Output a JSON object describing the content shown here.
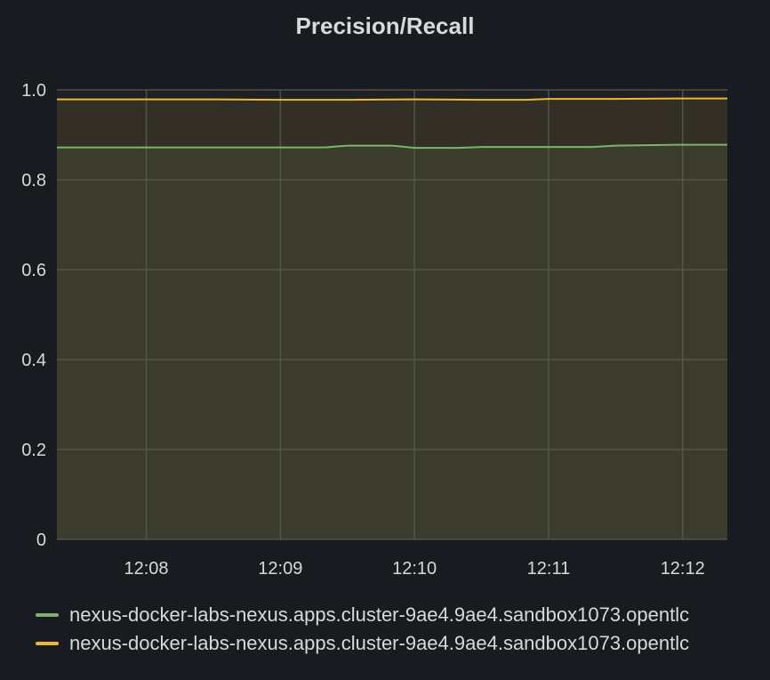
{
  "title": "Precision/Recall",
  "colors": {
    "background": "#181b1f",
    "grid": "#5d5f52",
    "text": "#d8d9da"
  },
  "chart_data": {
    "type": "line",
    "title": "Precision/Recall",
    "xlabel": "",
    "ylabel": "",
    "ylim": [
      0,
      1.0
    ],
    "xlim": [
      "12:07:20",
      "12:12:20"
    ],
    "yticks": [
      "0",
      "0.2",
      "0.4",
      "0.6",
      "0.8",
      "1.0"
    ],
    "xticks": [
      "12:08",
      "12:09",
      "12:10",
      "12:11",
      "12:12"
    ],
    "grid": true,
    "legend_position": "bottom",
    "series": [
      {
        "name": "nexus-docker-labs-nexus.apps.cluster-9ae4.9ae4.sandbox1073.opentlc",
        "color": "#7eb26d",
        "fill": true,
        "x": [
          "12:07:20",
          "12:08:00",
          "12:08:30",
          "12:09:00",
          "12:09:20",
          "12:09:30",
          "12:09:50",
          "12:10:00",
          "12:10:20",
          "12:10:30",
          "12:11:00",
          "12:11:20",
          "12:11:30",
          "12:12:00",
          "12:12:20"
        ],
        "values": [
          0.872,
          0.872,
          0.872,
          0.872,
          0.872,
          0.876,
          0.876,
          0.871,
          0.871,
          0.873,
          0.873,
          0.873,
          0.876,
          0.878,
          0.878
        ]
      },
      {
        "name": "nexus-docker-labs-nexus.apps.cluster-9ae4.9ae4.sandbox1073.opentlc",
        "color": "#eab839",
        "fill": true,
        "x": [
          "12:07:20",
          "12:08:00",
          "12:08:30",
          "12:09:00",
          "12:09:30",
          "12:10:00",
          "12:10:30",
          "12:10:50",
          "12:11:00",
          "12:11:30",
          "12:12:00",
          "12:12:20"
        ],
        "values": [
          0.979,
          0.979,
          0.979,
          0.978,
          0.978,
          0.979,
          0.978,
          0.978,
          0.98,
          0.98,
          0.981,
          0.981
        ]
      }
    ]
  }
}
